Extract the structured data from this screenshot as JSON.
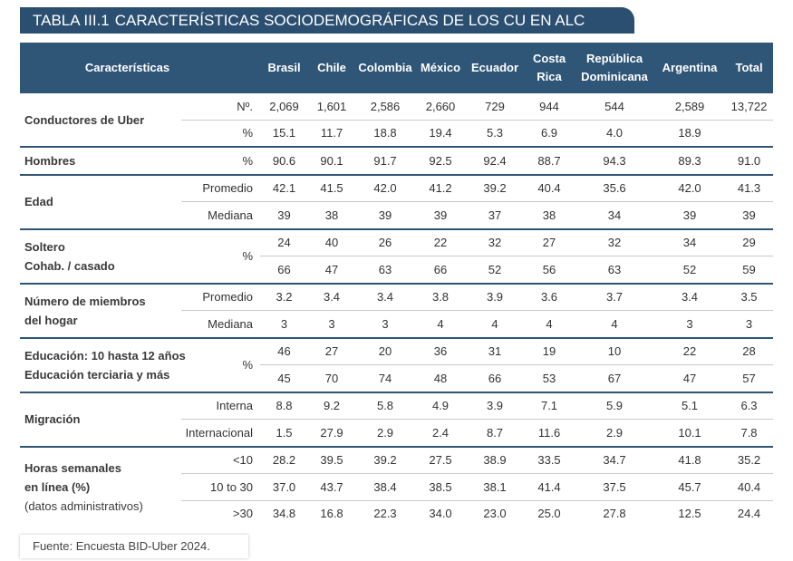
{
  "title": {
    "label": "TABLA III.1",
    "text": "CARACTERÍSTICAS SOCIODEMOGRÁFICAS DE LOS CU EN ALC"
  },
  "header": [
    "Características",
    "Brasil",
    "Chile",
    "Colombia",
    "México",
    "Ecuador",
    "Costa Rica",
    "República Dominicana",
    "Argentina",
    "Total"
  ],
  "groups": [
    {
      "labels": [
        "Conductores de Uber"
      ],
      "rows": [
        {
          "unit": "Nº.",
          "values": [
            "2,069",
            "1,601",
            "2,586",
            "2,660",
            "729",
            "944",
            "544",
            "2,589",
            "13,722"
          ]
        },
        {
          "unit": "%",
          "values": [
            "15.1",
            "11.7",
            "18.8",
            "19.4",
            "5.3",
            "6.9",
            "4.0",
            "18.9",
            null
          ]
        }
      ]
    },
    {
      "labels": [
        "Hombres"
      ],
      "rows": [
        {
          "unit": "%",
          "values": [
            "90.6",
            "90.1",
            "91.7",
            "92.5",
            "92.4",
            "88.7",
            "94.3",
            "89.3",
            "91.0"
          ]
        }
      ]
    },
    {
      "labels": [
        "Edad"
      ],
      "rows": [
        {
          "unit": "Promedio",
          "values": [
            "42.1",
            "41.5",
            "42.0",
            "41.2",
            "39.2",
            "40.4",
            "35.6",
            "42.0",
            "41.3"
          ]
        },
        {
          "unit": "Mediana",
          "values": [
            "39",
            "38",
            "39",
            "39",
            "37",
            "38",
            "34",
            "39",
            "39"
          ]
        }
      ]
    },
    {
      "labels": [
        "Soltero",
        "Cohab. / casado"
      ],
      "unit": "%",
      "rows": [
        {
          "values": [
            "24",
            "40",
            "26",
            "22",
            "32",
            "27",
            "32",
            "34",
            "29"
          ]
        },
        {
          "values": [
            "66",
            "47",
            "63",
            "66",
            "52",
            "56",
            "63",
            "52",
            "59"
          ]
        }
      ]
    },
    {
      "labels": [
        "Número de miembros",
        "del hogar"
      ],
      "rows": [
        {
          "unit": "Promedio",
          "values": [
            "3.2",
            "3.4",
            "3.4",
            "3.8",
            "3.9",
            "3.6",
            "3.7",
            "3.4",
            "3.5"
          ]
        },
        {
          "unit": "Mediana",
          "values": [
            "3",
            "3",
            "3",
            "4",
            "4",
            "4",
            "4",
            "3",
            "3"
          ]
        }
      ]
    },
    {
      "labels": [
        "Educación: 10 hasta 12 años",
        "Educación terciaria y más"
      ],
      "unit": "%",
      "rows": [
        {
          "values": [
            "46",
            "27",
            "20",
            "36",
            "31",
            "19",
            "10",
            "22",
            "28"
          ]
        },
        {
          "values": [
            "45",
            "70",
            "74",
            "48",
            "66",
            "53",
            "67",
            "47",
            "57"
          ]
        }
      ]
    },
    {
      "labels": [
        "Migración"
      ],
      "rows": [
        {
          "unit": "Interna",
          "values": [
            "8.8",
            "9.2",
            "5.8",
            "4.9",
            "3.9",
            "7.1",
            "5.9",
            "5.1",
            "6.3"
          ]
        },
        {
          "unit": "Internacional",
          "values": [
            "1.5",
            "27.9",
            "2.9",
            "2.4",
            "8.7",
            "11.6",
            "2.9",
            "10.1",
            "7.8"
          ]
        }
      ]
    },
    {
      "labels": [
        "Horas semanales",
        "en línea (%)",
        "(datos administrativos)"
      ],
      "rows": [
        {
          "unit": "<10",
          "values": [
            "28.2",
            "39.5",
            "39.2",
            "27.5",
            "38.9",
            "33.5",
            "34.7",
            "41.8",
            "35.2"
          ]
        },
        {
          "unit": "10 to 30",
          "values": [
            "37.0",
            "43.7",
            "38.4",
            "38.5",
            "38.1",
            "41.4",
            "37.5",
            "45.7",
            "40.4"
          ]
        },
        {
          "unit": ">30",
          "values": [
            "34.8",
            "16.8",
            "22.3",
            "34.0",
            "23.0",
            "25.0",
            "27.8",
            "12.5",
            "24.4"
          ]
        }
      ]
    }
  ],
  "source": "Fuente: Encuesta BID-Uber 2024."
}
